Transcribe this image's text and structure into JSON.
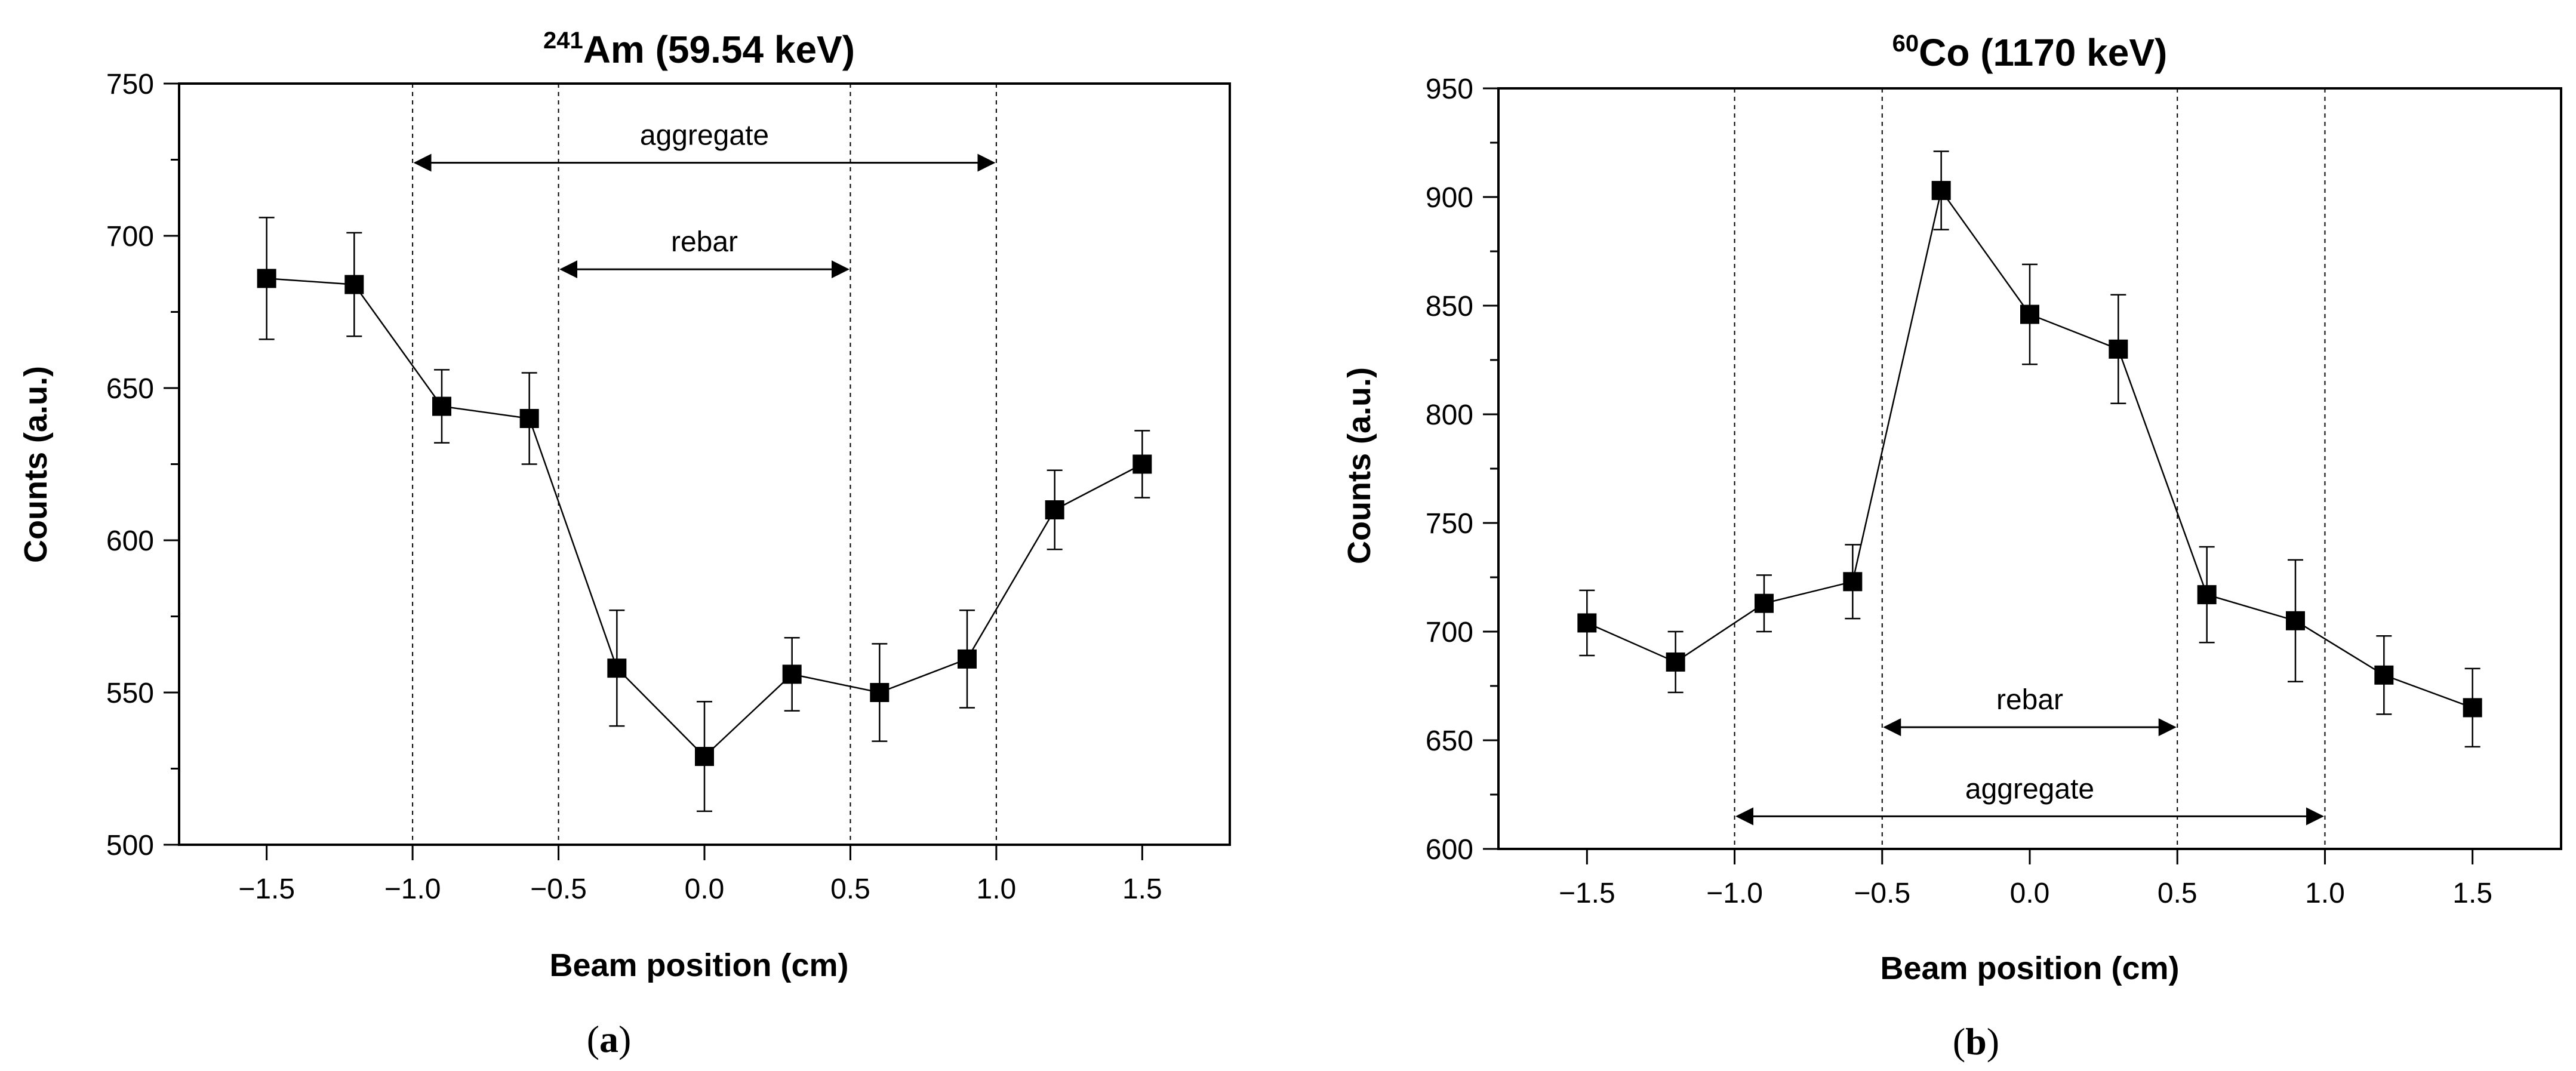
{
  "chart_data": [
    {
      "type": "scatter",
      "title_sup": "241",
      "title_main": "Am (59.54 keV)",
      "xlabel": "Beam position (cm)",
      "ylabel": "Counts (a.u.)",
      "xlim": [
        -1.8,
        1.8
      ],
      "ylim": [
        500,
        750
      ],
      "xticks": [
        -1.5,
        -1.0,
        -0.5,
        0.0,
        0.5,
        1.0,
        1.5
      ],
      "xtick_labels": [
        "−1.5",
        "−1.0",
        "−0.5",
        "0.0",
        "0.5",
        "1.0",
        "1.5"
      ],
      "yticks": [
        500,
        550,
        600,
        650,
        700,
        750
      ],
      "ytick_labels": [
        "500",
        "550",
        "600",
        "650",
        "700",
        "750"
      ],
      "series": [
        {
          "name": "counts",
          "x": [
            -1.5,
            -1.2,
            -0.9,
            -0.6,
            -0.3,
            0.0,
            0.3,
            0.6,
            0.9,
            1.2,
            1.5
          ],
          "y": [
            686,
            684,
            644,
            640,
            558,
            529,
            556,
            550,
            561,
            610,
            625
          ],
          "err": [
            20,
            17,
            12,
            15,
            19,
            18,
            12,
            16,
            16,
            13,
            11
          ]
        }
      ],
      "vlines": [
        -1.0,
        -0.5,
        0.5,
        1.0
      ],
      "annotations": [
        {
          "text": "aggregate",
          "x1": -1.0,
          "x2": 1.0,
          "y": 724
        },
        {
          "text": "rebar",
          "x1": -0.5,
          "x2": 0.5,
          "y": 689
        }
      ],
      "panel_label": "a"
    },
    {
      "type": "scatter",
      "title_sup": "60",
      "title_main": "Co (1170 keV)",
      "xlabel": "Beam position (cm)",
      "ylabel": "Counts (a.u.)",
      "xlim": [
        -1.8,
        1.8
      ],
      "ylim": [
        600,
        950
      ],
      "xticks": [
        -1.5,
        -1.0,
        -0.5,
        0.0,
        0.5,
        1.0,
        1.5
      ],
      "xtick_labels": [
        "−1.5",
        "−1.0",
        "−0.5",
        "0.0",
        "0.5",
        "1.0",
        "1.5"
      ],
      "yticks": [
        600,
        650,
        700,
        750,
        800,
        850,
        900,
        950
      ],
      "ytick_labels": [
        "600",
        "650",
        "700",
        "750",
        "800",
        "850",
        "900",
        "950"
      ],
      "series": [
        {
          "name": "counts",
          "x": [
            -1.5,
            -1.2,
            -0.9,
            -0.6,
            -0.3,
            0.0,
            0.3,
            0.6,
            0.9,
            1.2,
            1.5
          ],
          "y": [
            704,
            686,
            713,
            723,
            903,
            846,
            830,
            717,
            705,
            680,
            665
          ],
          "err": [
            15,
            14,
            13,
            17,
            18,
            23,
            25,
            22,
            28,
            18,
            18
          ]
        }
      ],
      "vlines": [
        -1.0,
        -0.5,
        0.5,
        1.0
      ],
      "annotations": [
        {
          "text": "rebar",
          "x1": -0.5,
          "x2": 0.5,
          "y": 656
        },
        {
          "text": "aggregate",
          "x1": -1.0,
          "x2": 1.0,
          "y": 615
        }
      ],
      "panel_label": "b"
    }
  ]
}
